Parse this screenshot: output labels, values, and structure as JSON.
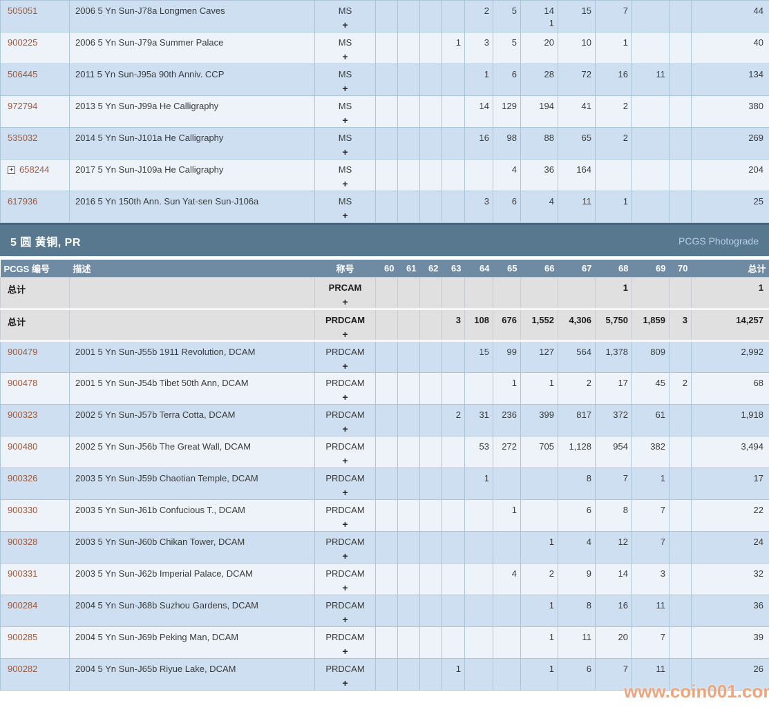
{
  "section": {
    "title": "5 圆 黄铜, PR",
    "photograde": "PCGS Photograde"
  },
  "watermark": "www.coin001.com",
  "plus_symbol": "+",
  "columns": {
    "pcgs": "PCGS 编号",
    "description": "描述",
    "designation": "称号",
    "grades": [
      "60",
      "61",
      "62",
      "63",
      "64",
      "65",
      "66",
      "67",
      "68",
      "69",
      "70"
    ],
    "total": "总计"
  },
  "ms_table": {
    "rows": [
      {
        "pcgs": "505051",
        "expand": false,
        "description": "2006 5 Yn Sun-J78a Longmen Caves",
        "designation": "MS",
        "grades": [
          "",
          "",
          "",
          "",
          "2",
          "5",
          "14",
          "15",
          "7",
          "",
          ""
        ],
        "grades_line2": [
          "",
          "",
          "",
          "",
          "",
          "",
          "1",
          "",
          "",
          "",
          ""
        ],
        "total": "44",
        "shade": "dark"
      },
      {
        "pcgs": "900225",
        "expand": false,
        "description": "2006 5 Yn Sun-J79a Summer Palace",
        "designation": "MS",
        "grades": [
          "",
          "",
          "",
          "1",
          "3",
          "5",
          "20",
          "10",
          "1",
          "",
          ""
        ],
        "grades_line2": null,
        "total": "40",
        "shade": "light"
      },
      {
        "pcgs": "506445",
        "expand": false,
        "description": "2011 5 Yn Sun-J95a 90th Anniv. CCP",
        "designation": "MS",
        "grades": [
          "",
          "",
          "",
          "",
          "1",
          "6",
          "28",
          "72",
          "16",
          "11",
          ""
        ],
        "grades_line2": null,
        "total": "134",
        "shade": "dark"
      },
      {
        "pcgs": "972794",
        "expand": false,
        "description": "2013 5 Yn Sun-J99a He Calligraphy",
        "designation": "MS",
        "grades": [
          "",
          "",
          "",
          "",
          "14",
          "129",
          "194",
          "41",
          "2",
          "",
          ""
        ],
        "grades_line2": null,
        "total": "380",
        "shade": "light"
      },
      {
        "pcgs": "535032",
        "expand": false,
        "description": "2014 5 Yn Sun-J101a He Calligraphy",
        "designation": "MS",
        "grades": [
          "",
          "",
          "",
          "",
          "16",
          "98",
          "88",
          "65",
          "2",
          "",
          ""
        ],
        "grades_line2": null,
        "total": "269",
        "shade": "dark"
      },
      {
        "pcgs": "658244",
        "expand": true,
        "description": "2017 5 Yn Sun-J109a He Calligraphy",
        "designation": "MS",
        "grades": [
          "",
          "",
          "",
          "",
          "",
          "4",
          "36",
          "164",
          "",
          "",
          ""
        ],
        "grades_line2": null,
        "total": "204",
        "shade": "light"
      },
      {
        "pcgs": "617936",
        "expand": false,
        "description": "2016 5 Yn 150th Ann. Sun Yat-sen Sun-J106a",
        "designation": "MS",
        "grades": [
          "",
          "",
          "",
          "",
          "3",
          "6",
          "4",
          "11",
          "1",
          "",
          ""
        ],
        "grades_line2": null,
        "total": "25",
        "shade": "dark"
      }
    ]
  },
  "pr_table": {
    "total_rows": [
      {
        "label": "总计",
        "designation": "PRCAM",
        "grades": [
          "",
          "",
          "",
          "",
          "",
          "",
          "",
          "",
          "1",
          "",
          ""
        ],
        "total": "1"
      },
      {
        "label": "总计",
        "designation": "PRDCAM",
        "grades": [
          "",
          "",
          "",
          "3",
          "108",
          "676",
          "1,552",
          "4,306",
          "5,750",
          "1,859",
          "3"
        ],
        "total": "14,257"
      }
    ],
    "rows": [
      {
        "pcgs": "900479",
        "expand": false,
        "description": "2001 5 Yn Sun-J55b 1911 Revolution, DCAM",
        "designation": "PRDCAM",
        "grades": [
          "",
          "",
          "",
          "",
          "15",
          "99",
          "127",
          "564",
          "1,378",
          "809",
          ""
        ],
        "grades_line2": null,
        "total": "2,992",
        "shade": "dark"
      },
      {
        "pcgs": "900478",
        "expand": false,
        "description": "2001 5 Yn Sun-J54b Tibet 50th Ann, DCAM",
        "designation": "PRDCAM",
        "grades": [
          "",
          "",
          "",
          "",
          "",
          "1",
          "1",
          "2",
          "17",
          "45",
          "2"
        ],
        "grades_line2": null,
        "total": "68",
        "shade": "light"
      },
      {
        "pcgs": "900323",
        "expand": false,
        "description": "2002 5 Yn Sun-J57b Terra Cotta, DCAM",
        "designation": "PRDCAM",
        "grades": [
          "",
          "",
          "",
          "2",
          "31",
          "236",
          "399",
          "817",
          "372",
          "61",
          ""
        ],
        "grades_line2": null,
        "total": "1,918",
        "shade": "dark"
      },
      {
        "pcgs": "900480",
        "expand": false,
        "description": "2002 5 Yn Sun-J56b The Great Wall, DCAM",
        "designation": "PRDCAM",
        "grades": [
          "",
          "",
          "",
          "",
          "53",
          "272",
          "705",
          "1,128",
          "954",
          "382",
          ""
        ],
        "grades_line2": null,
        "total": "3,494",
        "shade": "light"
      },
      {
        "pcgs": "900326",
        "expand": false,
        "description": "2003 5 Yn Sun-J59b Chaotian Temple, DCAM",
        "designation": "PRDCAM",
        "grades": [
          "",
          "",
          "",
          "",
          "1",
          "",
          "",
          "8",
          "7",
          "1",
          ""
        ],
        "grades_line2": null,
        "total": "17",
        "shade": "dark"
      },
      {
        "pcgs": "900330",
        "expand": false,
        "description": "2003 5 Yn Sun-J61b Confucious T., DCAM",
        "designation": "PRDCAM",
        "grades": [
          "",
          "",
          "",
          "",
          "",
          "1",
          "",
          "6",
          "8",
          "7",
          ""
        ],
        "grades_line2": null,
        "total": "22",
        "shade": "light"
      },
      {
        "pcgs": "900328",
        "expand": false,
        "description": "2003 5 Yn Sun-J60b Chikan Tower, DCAM",
        "designation": "PRDCAM",
        "grades": [
          "",
          "",
          "",
          "",
          "",
          "",
          "1",
          "4",
          "12",
          "7",
          ""
        ],
        "grades_line2": null,
        "total": "24",
        "shade": "dark"
      },
      {
        "pcgs": "900331",
        "expand": false,
        "description": "2003 5 Yn Sun-J62b Imperial Palace, DCAM",
        "designation": "PRDCAM",
        "grades": [
          "",
          "",
          "",
          "",
          "",
          "4",
          "2",
          "9",
          "14",
          "3",
          ""
        ],
        "grades_line2": null,
        "total": "32",
        "shade": "light"
      },
      {
        "pcgs": "900284",
        "expand": false,
        "description": "2004 5 Yn Sun-J68b Suzhou Gardens, DCAM",
        "designation": "PRDCAM",
        "grades": [
          "",
          "",
          "",
          "",
          "",
          "",
          "1",
          "8",
          "16",
          "11",
          ""
        ],
        "grades_line2": null,
        "total": "36",
        "shade": "dark"
      },
      {
        "pcgs": "900285",
        "expand": false,
        "description": "2004 5 Yn Sun-J69b Peking Man, DCAM",
        "designation": "PRDCAM",
        "grades": [
          "",
          "",
          "",
          "",
          "",
          "",
          "1",
          "11",
          "20",
          "7",
          ""
        ],
        "grades_line2": null,
        "total": "39",
        "shade": "light"
      },
      {
        "pcgs": "900282",
        "expand": false,
        "description": "2004 5 Yn Sun-J65b Riyue Lake, DCAM",
        "designation": "PRDCAM",
        "grades": [
          "",
          "",
          "",
          "1",
          "",
          "",
          "1",
          "6",
          "7",
          "11",
          ""
        ],
        "grades_line2": null,
        "total": "26",
        "shade": "dark"
      }
    ]
  }
}
